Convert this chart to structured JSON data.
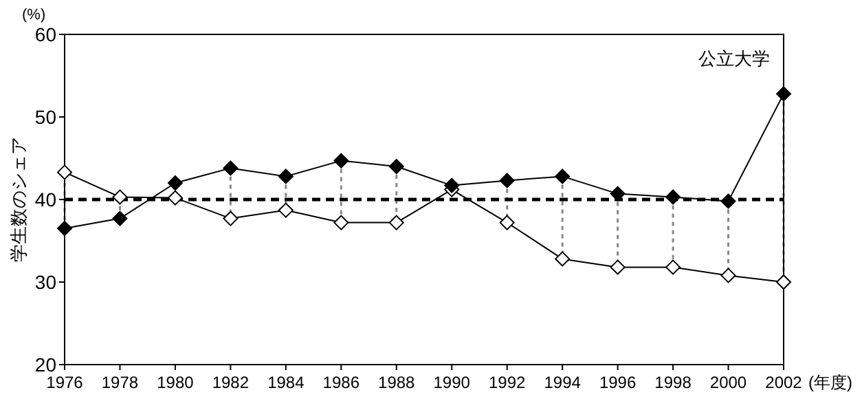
{
  "chart_data": {
    "type": "line",
    "ylabel": "学生数のシェア",
    "xlabel": "(年度)",
    "annotations": [
      "(%)",
      "公立大学"
    ],
    "x": [
      1976,
      1978,
      1980,
      1982,
      1984,
      1986,
      1988,
      1990,
      1992,
      1994,
      1996,
      1998,
      2000,
      2002
    ],
    "series": [
      {
        "color": "#000000",
        "values": [
          36.5,
          37.7,
          42,
          43.8,
          42.8,
          44.7,
          44,
          41.7,
          42.3,
          42.8,
          40.7,
          40.3,
          39.8,
          52.8
        ]
      },
      {
        "color": "#ffffff",
        "values": [
          43.3,
          40.3,
          40.2,
          37.7,
          38.7,
          37.2,
          37.2,
          41.2,
          37.2,
          32.8,
          31.8,
          31.8,
          30.8,
          30
        ]
      }
    ],
    "xlim": [
      1976,
      2002
    ],
    "xticks": [
      1976,
      1978,
      1980,
      1982,
      1984,
      1986,
      1988,
      1990,
      1992,
      1994,
      1996,
      1998,
      2000,
      2002
    ],
    "ylim": [
      20,
      60
    ],
    "yticks": [
      20,
      30,
      40,
      50,
      60
    ],
    "ref_lines": [
      {
        "axis": "y",
        "value": 40,
        "color": "#000000",
        "line_style": "dashed"
      }
    ],
    "marker": "diamond",
    "line_style": "solid",
    "grid": false
  }
}
